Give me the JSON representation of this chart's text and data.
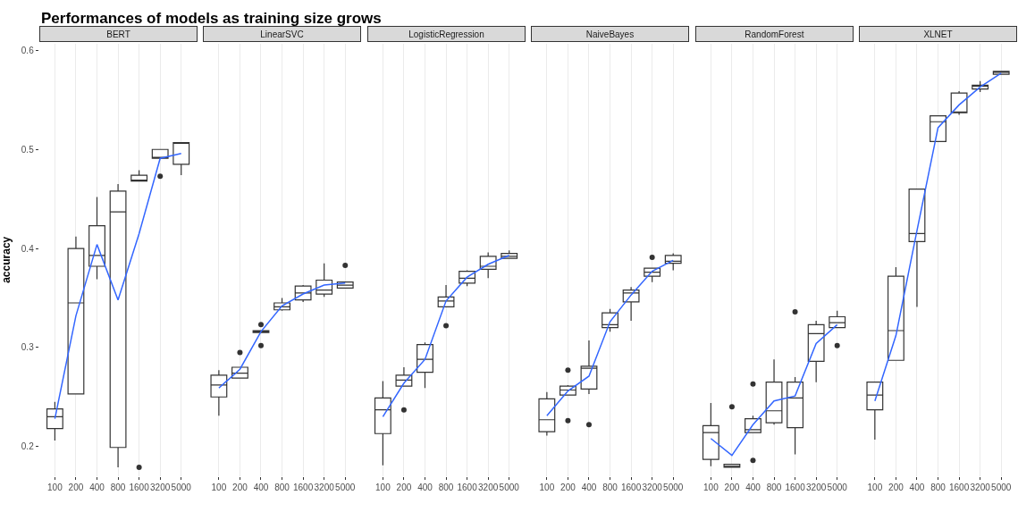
{
  "chart_data": [
    {
      "type": "box",
      "title": "BERT",
      "annotations": [
        "Performances of models as training size grows"
      ],
      "ylabel": "accuracy",
      "categories": [
        "100",
        "200",
        "400",
        "800",
        "1600",
        "3200",
        "5000"
      ],
      "ylim": [
        0.17,
        0.607
      ],
      "yticks": [
        0.2,
        0.3,
        0.4,
        0.5,
        0.6
      ],
      "grid": "x",
      "series": [
        {
          "color": "#333333",
          "boxes": [
            {
              "low": 0.206,
              "q1": 0.218,
              "median": 0.23,
              "q3": 0.238,
              "high": 0.245
            },
            {
              "low": 0.253,
              "q1": 0.253,
              "median": 0.345,
              "q3": 0.4,
              "high": 0.412
            },
            {
              "low": 0.369,
              "q1": 0.382,
              "median": 0.393,
              "q3": 0.423,
              "high": 0.452
            },
            {
              "low": 0.179,
              "q1": 0.199,
              "median": 0.437,
              "q3": 0.458,
              "high": 0.465
            },
            {
              "low": 0.468,
              "q1": 0.468,
              "median": 0.469,
              "q3": 0.474,
              "high": 0.479,
              "outliers": [
                0.179
              ]
            },
            {
              "low": 0.491,
              "q1": 0.491,
              "median": 0.492,
              "q3": 0.5,
              "high": 0.5,
              "outliers": [
                0.473
              ]
            },
            {
              "low": 0.474,
              "q1": 0.485,
              "median": 0.507,
              "q3": 0.507,
              "high": 0.507
            }
          ]
        },
        {
          "type": "line",
          "color": "#3366ff",
          "values": [
            0.228,
            0.332,
            0.404,
            0.348,
            0.415,
            0.491,
            0.496
          ]
        }
      ]
    },
    {
      "type": "box",
      "title": "LinearSVC",
      "categories": [
        "100",
        "200",
        "400",
        "800",
        "1600",
        "3200",
        "5000"
      ],
      "ylim": [
        0.17,
        0.607
      ],
      "yticks": [
        0.2,
        0.3,
        0.4,
        0.5,
        0.6
      ],
      "grid": "x",
      "tick_labels": "x",
      "series": [
        {
          "color": "#333333",
          "boxes": [
            {
              "low": 0.231,
              "q1": 0.25,
              "median": 0.262,
              "q3": 0.272,
              "high": 0.277
            },
            {
              "low": 0.269,
              "q1": 0.269,
              "median": 0.274,
              "q3": 0.28,
              "high": 0.28,
              "outliers": [
                0.295
              ]
            },
            {
              "low": 0.315,
              "q1": 0.315,
              "median": 0.316,
              "q3": 0.317,
              "high": 0.317,
              "outliers": [
                0.323,
                0.302
              ]
            },
            {
              "low": 0.337,
              "q1": 0.338,
              "median": 0.341,
              "q3": 0.345,
              "high": 0.35
            },
            {
              "low": 0.346,
              "q1": 0.348,
              "median": 0.355,
              "q3": 0.362,
              "high": 0.363
            },
            {
              "low": 0.351,
              "q1": 0.354,
              "median": 0.358,
              "q3": 0.368,
              "high": 0.385
            },
            {
              "low": 0.36,
              "q1": 0.36,
              "median": 0.363,
              "q3": 0.366,
              "high": 0.366,
              "outliers": [
                0.383
              ]
            }
          ]
        },
        {
          "type": "line",
          "color": "#3366ff",
          "values": [
            0.259,
            0.278,
            0.316,
            0.342,
            0.354,
            0.363,
            0.365
          ]
        }
      ]
    },
    {
      "type": "box",
      "title": "LogisticRegression",
      "categories": [
        "100",
        "200",
        "400",
        "800",
        "1600",
        "3200",
        "5000"
      ],
      "ylim": [
        0.17,
        0.607
      ],
      "yticks": [
        0.2,
        0.3,
        0.4,
        0.5,
        0.6
      ],
      "grid": "x",
      "tick_labels": "x",
      "series": [
        {
          "color": "#333333",
          "boxes": [
            {
              "low": 0.181,
              "q1": 0.213,
              "median": 0.237,
              "q3": 0.249,
              "high": 0.266
            },
            {
              "low": 0.261,
              "q1": 0.261,
              "median": 0.267,
              "q3": 0.272,
              "high": 0.28,
              "outliers": [
                0.237
              ]
            },
            {
              "low": 0.259,
              "q1": 0.275,
              "median": 0.288,
              "q3": 0.303,
              "high": 0.305
            },
            {
              "low": 0.341,
              "q1": 0.341,
              "median": 0.347,
              "q3": 0.351,
              "high": 0.363,
              "outliers": [
                0.322
              ]
            },
            {
              "low": 0.362,
              "q1": 0.365,
              "median": 0.37,
              "q3": 0.377,
              "high": 0.378
            },
            {
              "low": 0.37,
              "q1": 0.379,
              "median": 0.382,
              "q3": 0.392,
              "high": 0.396
            },
            {
              "low": 0.39,
              "q1": 0.39,
              "median": 0.392,
              "q3": 0.395,
              "high": 0.398
            }
          ]
        },
        {
          "type": "line",
          "color": "#3366ff",
          "values": [
            0.23,
            0.264,
            0.288,
            0.347,
            0.371,
            0.384,
            0.393
          ]
        }
      ]
    },
    {
      "type": "box",
      "title": "NaiveBayes",
      "categories": [
        "100",
        "200",
        "400",
        "800",
        "1600",
        "3200",
        "5000"
      ],
      "ylim": [
        0.17,
        0.607
      ],
      "yticks": [
        0.2,
        0.3,
        0.4,
        0.5,
        0.6
      ],
      "grid": "x",
      "tick_labels": "x",
      "series": [
        {
          "color": "#333333",
          "boxes": [
            {
              "low": 0.211,
              "q1": 0.215,
              "median": 0.227,
              "q3": 0.248,
              "high": 0.255
            },
            {
              "low": 0.252,
              "q1": 0.252,
              "median": 0.257,
              "q3": 0.261,
              "high": 0.262,
              "outliers": [
                0.277,
                0.226
              ]
            },
            {
              "low": 0.253,
              "q1": 0.258,
              "median": 0.279,
              "q3": 0.281,
              "high": 0.307,
              "outliers": [
                0.222
              ]
            },
            {
              "low": 0.316,
              "q1": 0.32,
              "median": 0.323,
              "q3": 0.335,
              "high": 0.339
            },
            {
              "low": 0.327,
              "q1": 0.346,
              "median": 0.355,
              "q3": 0.358,
              "high": 0.361
            },
            {
              "low": 0.366,
              "q1": 0.372,
              "median": 0.376,
              "q3": 0.38,
              "high": 0.38,
              "outliers": [
                0.391
              ]
            },
            {
              "low": 0.378,
              "q1": 0.385,
              "median": 0.387,
              "q3": 0.393,
              "high": 0.395
            }
          ]
        },
        {
          "type": "line",
          "color": "#3366ff",
          "values": [
            0.231,
            0.256,
            0.271,
            0.326,
            0.353,
            0.377,
            0.388
          ]
        }
      ]
    },
    {
      "type": "box",
      "title": "RandomForest",
      "categories": [
        "100",
        "200",
        "400",
        "800",
        "1600",
        "3200",
        "5000"
      ],
      "ylim": [
        0.17,
        0.607
      ],
      "yticks": [
        0.2,
        0.3,
        0.4,
        0.5,
        0.6
      ],
      "grid": "x",
      "tick_labels": "x",
      "series": [
        {
          "color": "#333333",
          "boxes": [
            {
              "low": 0.18,
              "q1": 0.187,
              "median": 0.214,
              "q3": 0.221,
              "high": 0.244
            },
            {
              "low": 0.179,
              "q1": 0.179,
              "median": 0.18,
              "q3": 0.182,
              "high": 0.182,
              "outliers": [
                0.24
              ]
            },
            {
              "low": 0.214,
              "q1": 0.214,
              "median": 0.217,
              "q3": 0.228,
              "high": 0.231,
              "outliers": [
                0.263,
                0.186
              ]
            },
            {
              "low": 0.222,
              "q1": 0.224,
              "median": 0.236,
              "q3": 0.265,
              "high": 0.288
            },
            {
              "low": 0.192,
              "q1": 0.219,
              "median": 0.249,
              "q3": 0.265,
              "high": 0.27,
              "outliers": [
                0.336
              ]
            },
            {
              "low": 0.265,
              "q1": 0.286,
              "median": 0.314,
              "q3": 0.323,
              "high": 0.327
            },
            {
              "low": 0.32,
              "q1": 0.32,
              "median": 0.325,
              "q3": 0.331,
              "high": 0.337,
              "outliers": [
                0.302
              ]
            }
          ]
        },
        {
          "type": "line",
          "color": "#3366ff",
          "values": [
            0.208,
            0.191,
            0.222,
            0.246,
            0.251,
            0.304,
            0.323
          ]
        }
      ]
    },
    {
      "type": "box",
      "title": "XLNET",
      "categories": [
        "100",
        "200",
        "400",
        "800",
        "1600",
        "3200",
        "5000"
      ],
      "ylim": [
        0.17,
        0.607
      ],
      "yticks": [
        0.2,
        0.3,
        0.4,
        0.5,
        0.6
      ],
      "grid": "x",
      "tick_labels": "x",
      "series": [
        {
          "color": "#333333",
          "boxes": [
            {
              "low": 0.207,
              "q1": 0.237,
              "median": 0.252,
              "q3": 0.265,
              "high": 0.265
            },
            {
              "low": 0.287,
              "q1": 0.287,
              "median": 0.317,
              "q3": 0.372,
              "high": 0.381
            },
            {
              "low": 0.341,
              "q1": 0.407,
              "median": 0.415,
              "q3": 0.46,
              "high": 0.46
            },
            {
              "low": 0.508,
              "q1": 0.508,
              "median": 0.528,
              "q3": 0.534,
              "high": 0.534
            },
            {
              "low": 0.535,
              "q1": 0.537,
              "median": 0.537,
              "q3": 0.557,
              "high": 0.559
            },
            {
              "low": 0.558,
              "q1": 0.561,
              "median": 0.564,
              "q3": 0.565,
              "high": 0.569
            },
            {
              "low": 0.576,
              "q1": 0.576,
              "median": 0.578,
              "q3": 0.579,
              "high": 0.579
            }
          ]
        },
        {
          "type": "line",
          "color": "#3366ff",
          "values": [
            0.246,
            0.312,
            0.418,
            0.522,
            0.545,
            0.563,
            0.577
          ]
        }
      ]
    }
  ]
}
